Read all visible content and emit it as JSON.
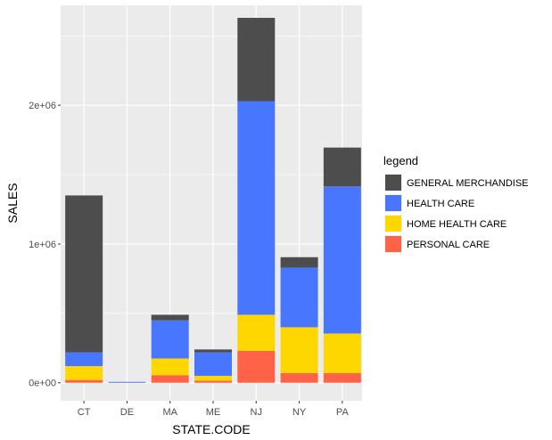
{
  "chart_data": {
    "type": "bar",
    "stacked": true,
    "xlabel": "STATE.CODE",
    "ylabel": "SALES",
    "categories": [
      "CT",
      "DE",
      "MA",
      "ME",
      "NJ",
      "NY",
      "PA"
    ],
    "ylim": [
      -130000,
      2720000
    ],
    "yticks": [
      0,
      1000000,
      2000000
    ],
    "ytick_labels": [
      "0e+00",
      "1e+06",
      "2e+06"
    ],
    "grid": true,
    "legend": {
      "title": "legend",
      "position": "right"
    },
    "series": [
      {
        "name": "PERSONAL CARE",
        "color": "#ff6347",
        "values": [
          20000,
          0,
          55000,
          15000,
          230000,
          70000,
          70000
        ]
      },
      {
        "name": "HOME HEALTH CARE",
        "color": "#ffd700",
        "values": [
          100000,
          0,
          120000,
          35000,
          260000,
          330000,
          285000
        ]
      },
      {
        "name": "HEALTH CARE",
        "color": "#4876ff",
        "values": [
          100000,
          5000,
          275000,
          170000,
          1540000,
          430000,
          1060000
        ]
      },
      {
        "name": "GENERAL MERCHANDISE",
        "color": "#4d4d4d",
        "values": [
          1130000,
          0,
          40000,
          20000,
          600000,
          75000,
          280000
        ]
      }
    ],
    "legend_order": [
      "GENERAL MERCHANDISE",
      "HEALTH CARE",
      "HOME HEALTH CARE",
      "PERSONAL CARE"
    ]
  }
}
